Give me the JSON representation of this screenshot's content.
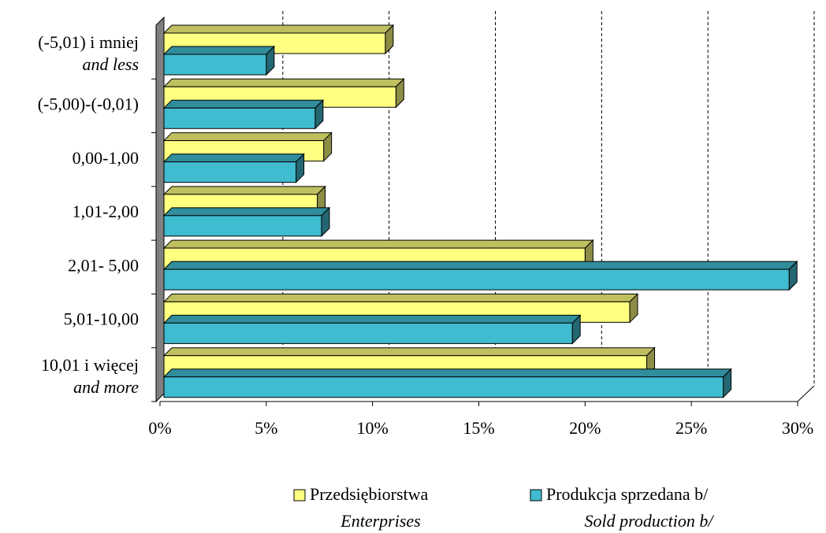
{
  "chart_data": {
    "type": "bar",
    "orientation": "horizontal",
    "categories": [
      [
        "(-5,01) i mniej",
        "and less"
      ],
      [
        "(-5,00)-(-0,01)"
      ],
      [
        "0,00-1,00"
      ],
      [
        "1,01-2,00"
      ],
      [
        "2,01- 5,00"
      ],
      [
        "5,01-10,00"
      ],
      [
        "10,01 i więcej",
        "and more"
      ]
    ],
    "series": [
      {
        "name": [
          "Przedsiębiorstwa",
          "Enterprises"
        ],
        "color": "#ffff80",
        "values": [
          10.6,
          11.1,
          7.7,
          7.4,
          20.0,
          22.1,
          22.9
        ]
      },
      {
        "name": [
          "Produkcja sprzedana b/",
          "Sold production b/"
        ],
        "color": "#40bcd0",
        "values": [
          5.0,
          7.3,
          6.4,
          7.6,
          29.6,
          19.4,
          26.5
        ]
      }
    ],
    "xlim": [
      0,
      30
    ],
    "xticks": [
      {
        "value": 0,
        "label": "0%"
      },
      {
        "value": 5,
        "label": "5%"
      },
      {
        "value": 10,
        "label": "10%"
      },
      {
        "value": 15,
        "label": "15%"
      },
      {
        "value": 20,
        "label": "20%"
      },
      {
        "value": 25,
        "label": "25%"
      },
      {
        "value": 30,
        "label": "30%"
      }
    ],
    "grid": true,
    "legend": "bottom"
  }
}
